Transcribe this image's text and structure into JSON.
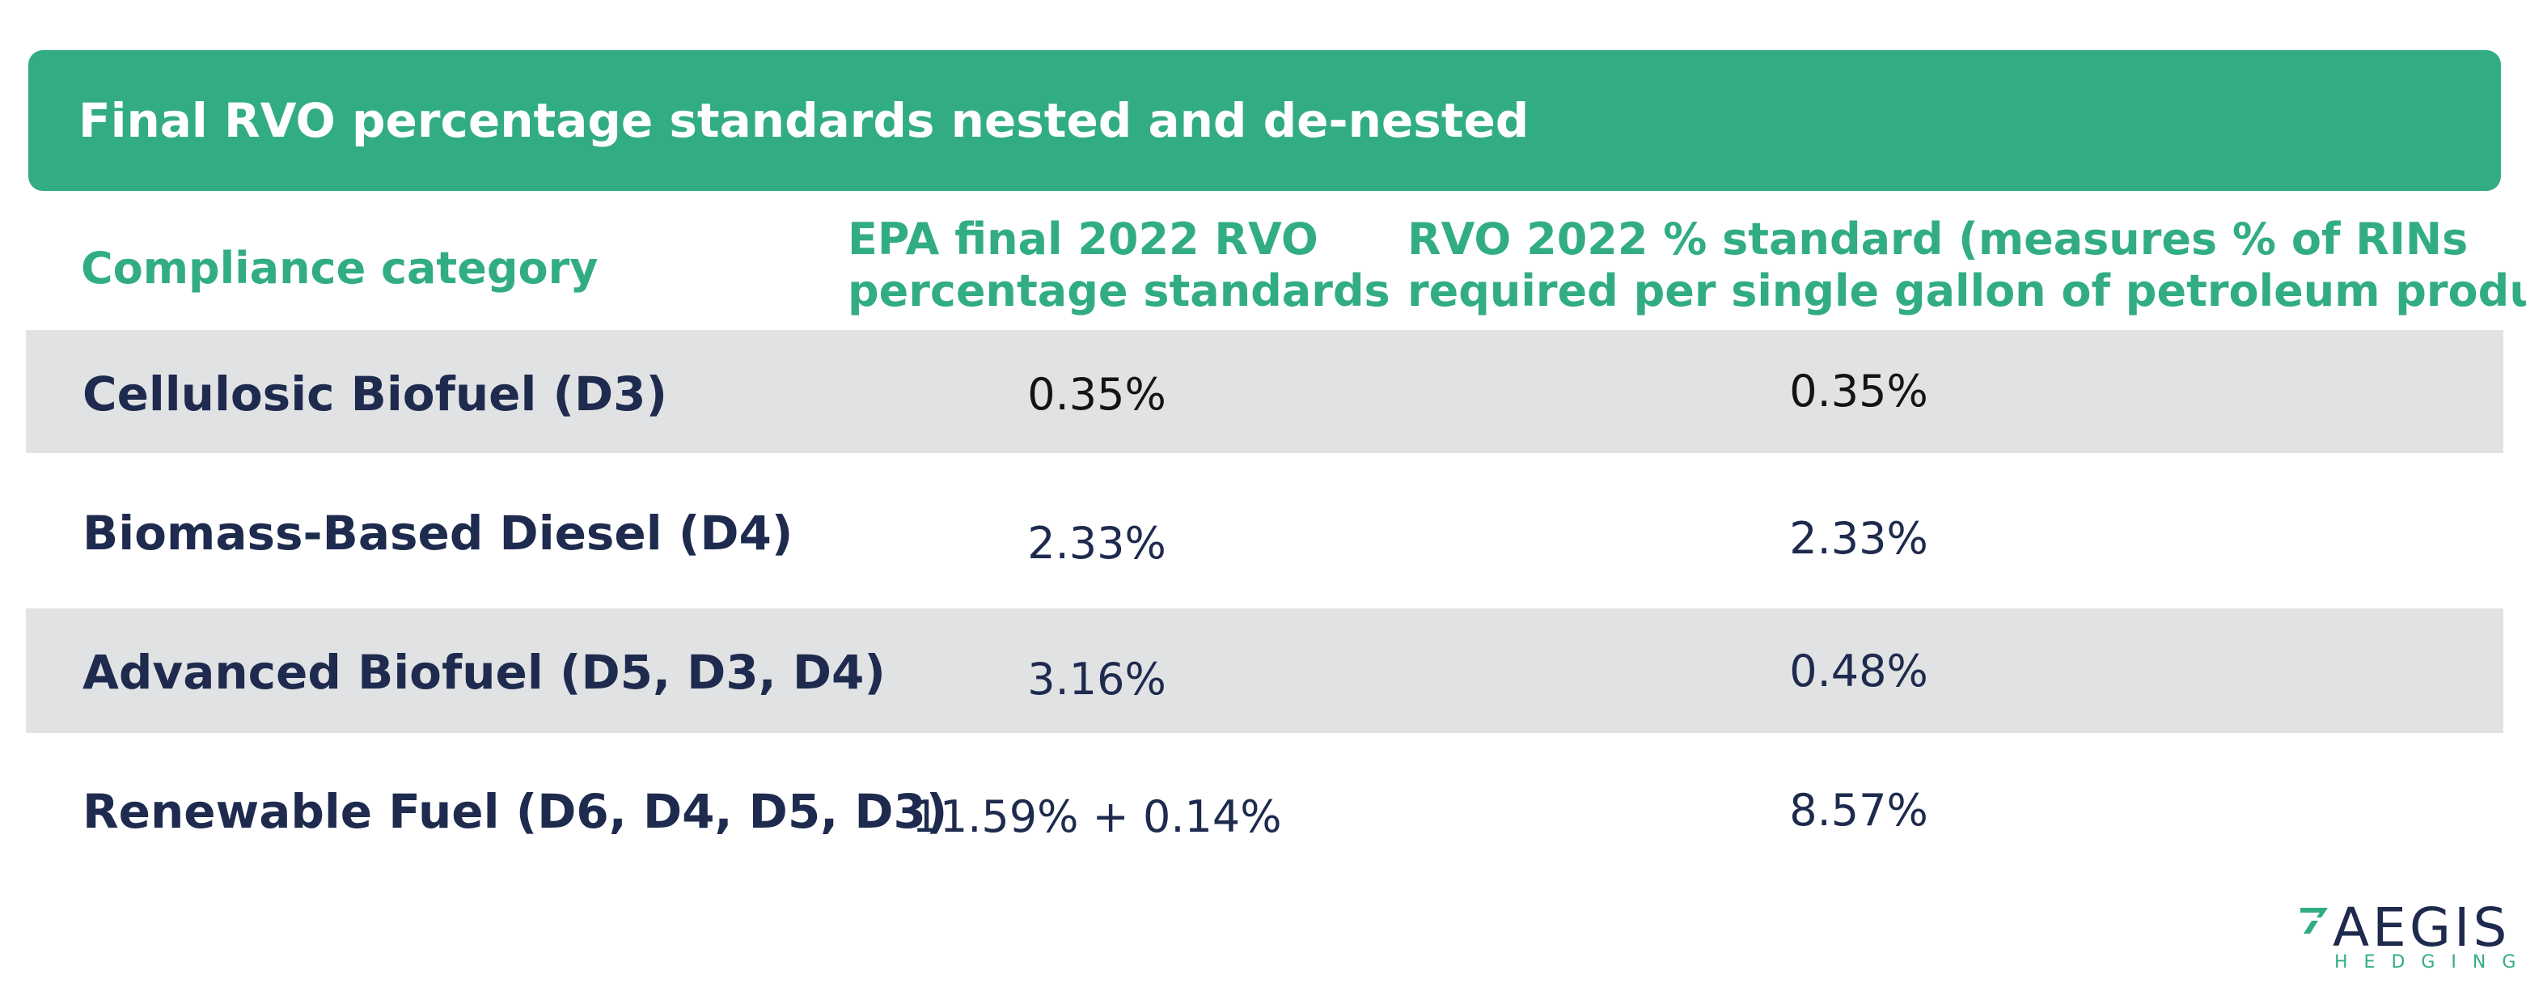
{
  "title": "Final RVO percentage standards nested and de-nested",
  "headers": {
    "category": "Compliance category",
    "epa_line1": "EPA final 2022 RVO",
    "epa_line2": "percentage standards",
    "rvo_line1": "RVO 2022 % standard (measures % of RINs",
    "rvo_line2": "required per single gallon of petroleum product)"
  },
  "rows": [
    {
      "category": "Cellulosic Biofuel (D3)",
      "epa": "0.35%",
      "rvo": "0.35%"
    },
    {
      "category": "Biomass-Based Diesel (D4)",
      "epa": "2.33%",
      "rvo": "2.33%"
    },
    {
      "category": "Advanced Biofuel (D5, D3, D4)",
      "epa": "3.16%",
      "rvo": "0.48%"
    },
    {
      "category": "Renewable Fuel (D6, D4, D5, D3)",
      "epa": "11.59% + 0.14%",
      "rvo": "8.57%"
    }
  ],
  "logo": {
    "name": "AEGIS",
    "sub": "HEDGING"
  },
  "colors": {
    "accent": "#32ad82",
    "navy": "#1e2b4e",
    "shade": "#e1e2e4"
  }
}
